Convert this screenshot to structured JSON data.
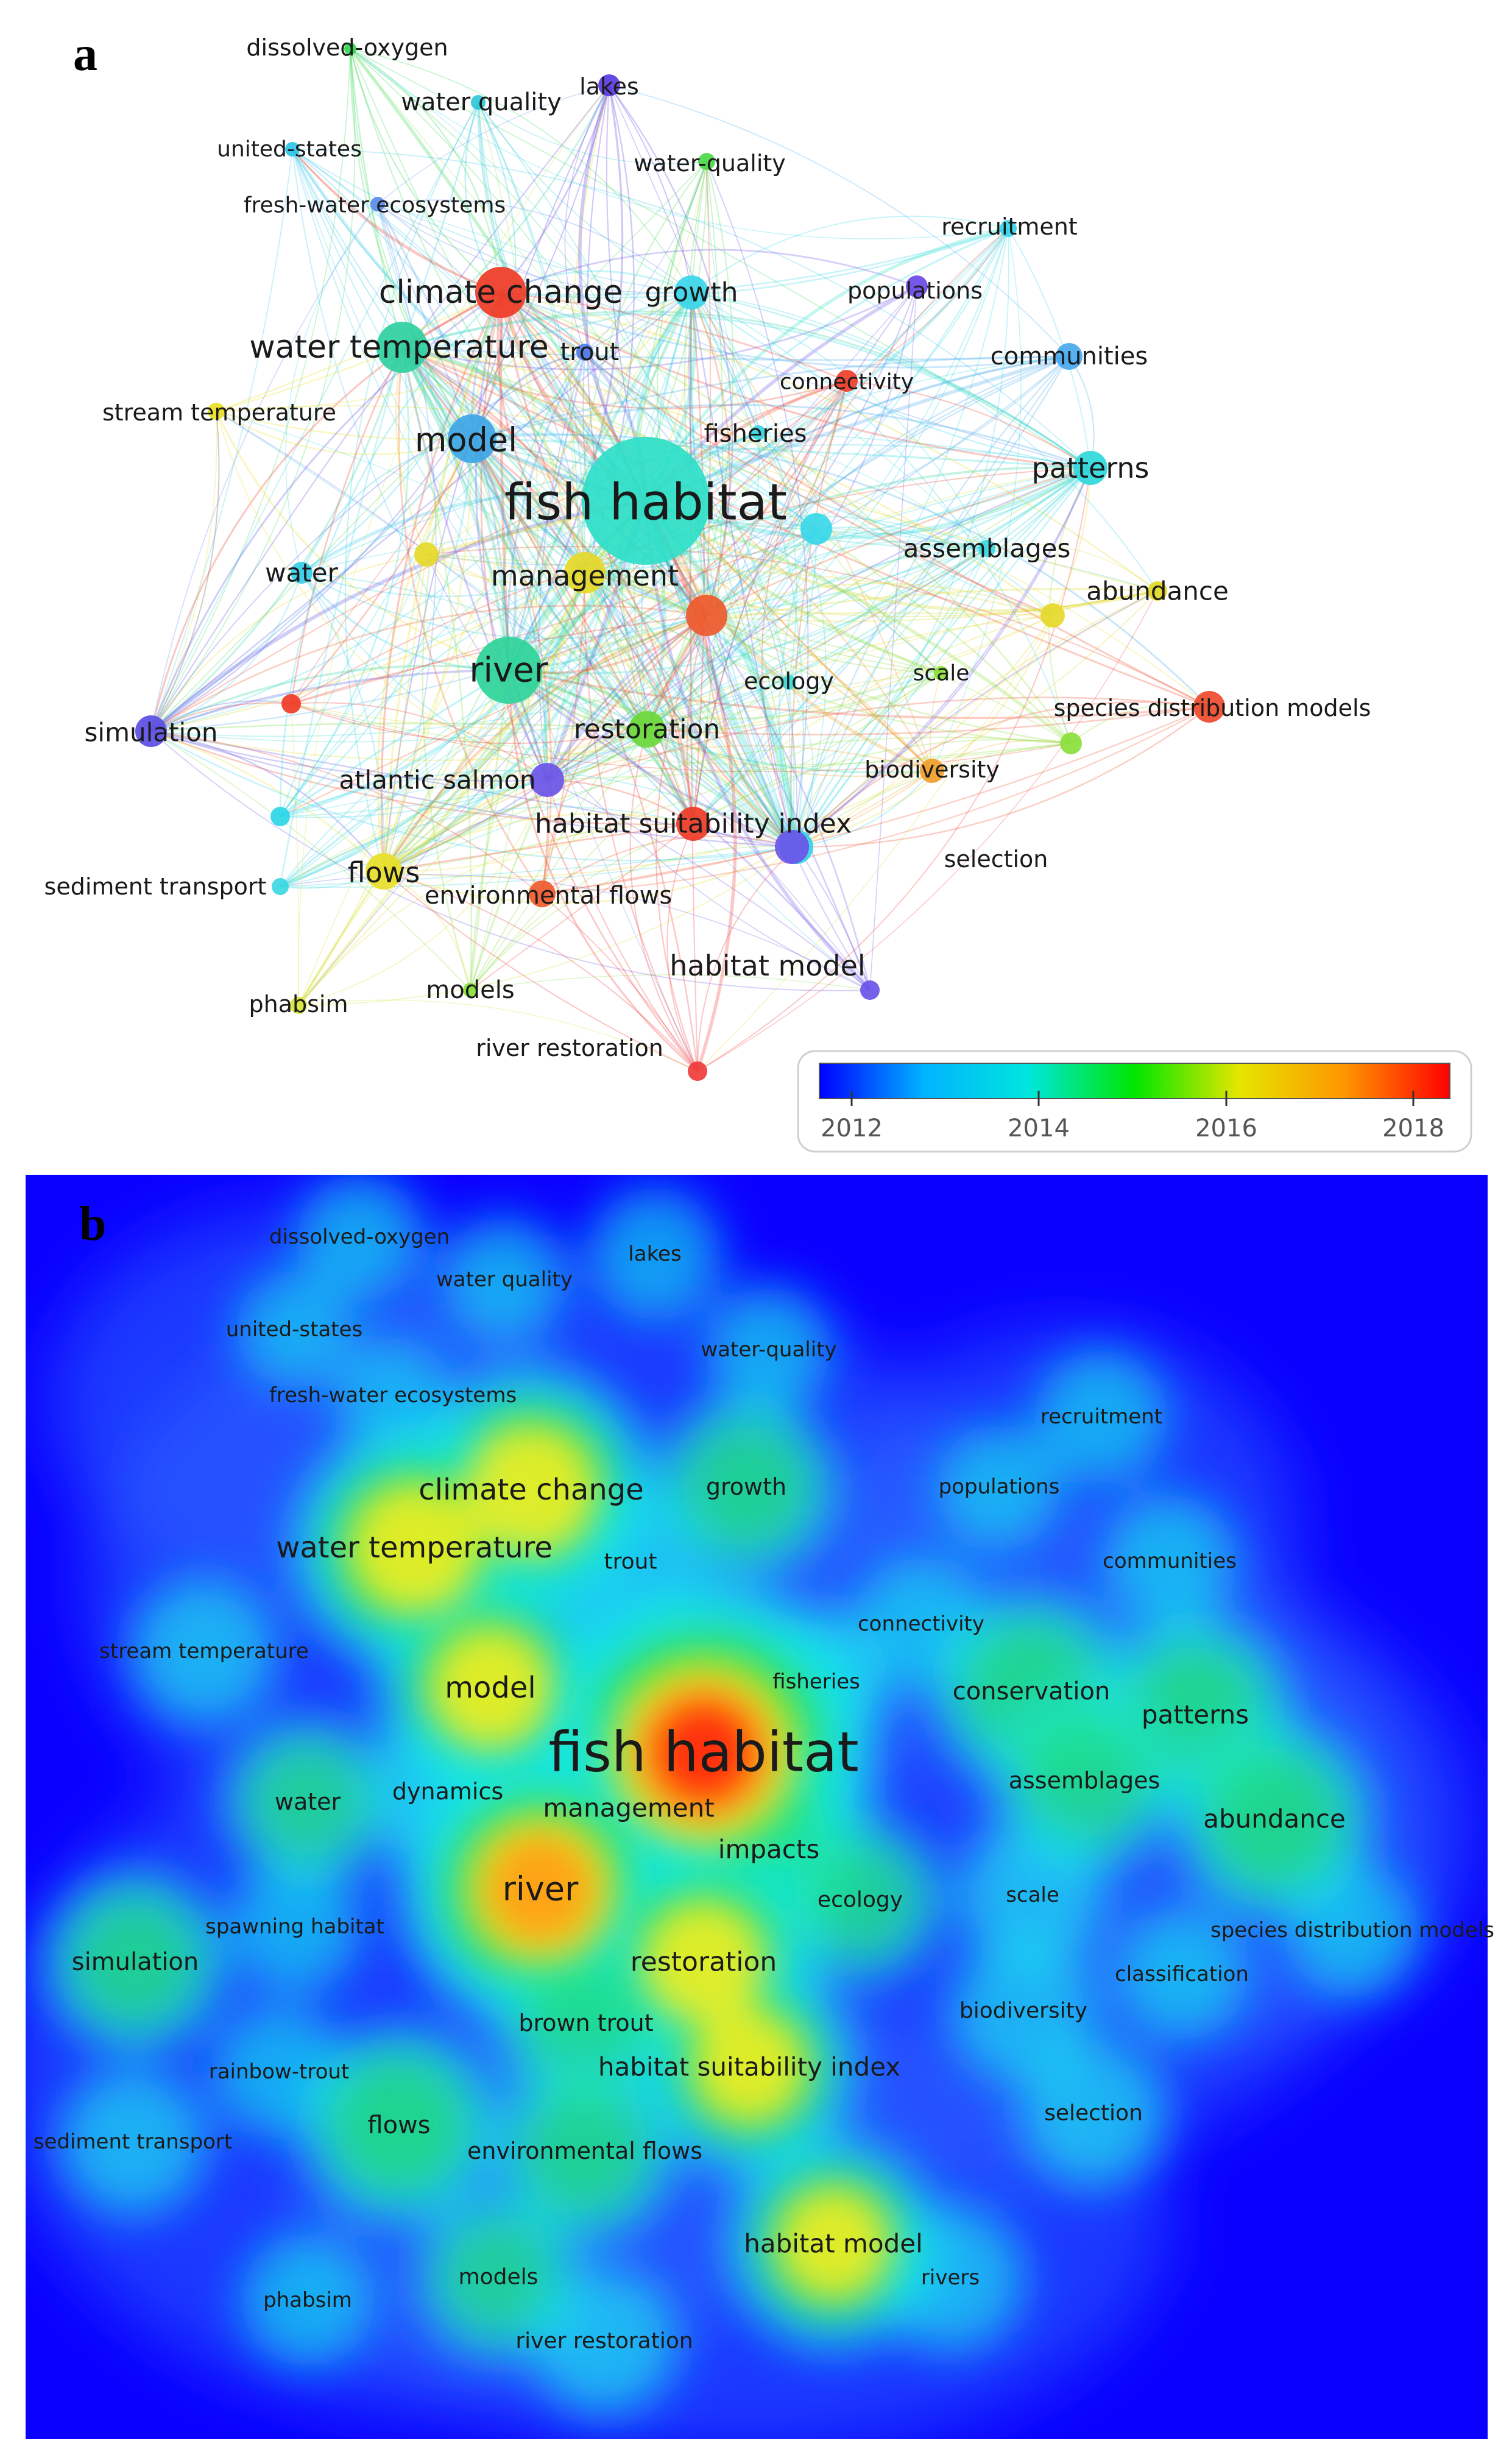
{
  "panel_a": {
    "letter": "a",
    "legend_ticks": [
      "2012",
      "2014",
      "2016",
      "2018"
    ],
    "legend_gradient": [
      "#0000ff",
      "#00b4ff",
      "#00e6dc",
      "#00e600",
      "#e6e600",
      "#ff9600",
      "#ff0000"
    ],
    "nodes": [
      {
        "label": "dissolved-oxygen",
        "color": "#2fd94e"
      },
      {
        "label": "lakes",
        "color": "#5a3be0"
      },
      {
        "label": "water quality",
        "color": "#2cc8d8"
      },
      {
        "label": "united-states",
        "color": "#31c4e9"
      },
      {
        "label": "water-quality",
        "color": "#4cd84a"
      },
      {
        "label": "fresh-water ecosystems",
        "color": "#5b8be8"
      },
      {
        "label": "recruitment",
        "color": "#33d6ea"
      },
      {
        "label": "climate change",
        "color": "#ef3b26"
      },
      {
        "label": "growth",
        "color": "#3ad6ea"
      },
      {
        "label": "populations",
        "color": "#6a4ae6"
      },
      {
        "label": "water temperature",
        "color": "#2fd0a0"
      },
      {
        "label": "trout",
        "color": "#4e7be6"
      },
      {
        "label": "communities",
        "color": "#48a8ee"
      },
      {
        "label": "connectivity",
        "color": "#ef3d2a"
      },
      {
        "label": "stream temperature",
        "color": "#e8df24"
      },
      {
        "label": "fisheries",
        "color": "#38d3de"
      },
      {
        "label": "model",
        "color": "#3ea6e6"
      },
      {
        "label": "patterns",
        "color": "#30d8dc"
      },
      {
        "label": "fish habitat",
        "color": "#2ee0c8"
      },
      {
        "label": "assemblages",
        "color": "#38d8dc"
      },
      {
        "label": "water",
        "color": "#36cce8"
      },
      {
        "label": "management",
        "color": "#e6d92a"
      },
      {
        "label": "abundance",
        "color": "#e2d828"
      },
      {
        "label": "river",
        "color": "#2ed49a"
      },
      {
        "label": "ecology",
        "color": "#3dd8d8"
      },
      {
        "label": "scale",
        "color": "#8be03a"
      },
      {
        "label": "simulation",
        "color": "#5b4ee4"
      },
      {
        "label": "species distribution models",
        "color": "#ef4a2d"
      },
      {
        "label": "restoration",
        "color": "#6bd83a"
      },
      {
        "label": "biodiversity",
        "color": "#f0a02a"
      },
      {
        "label": "atlantic salmon",
        "color": "#6a55e8"
      },
      {
        "label": "habitat suitability index",
        "color": "#ef3b26"
      },
      {
        "label": "selection",
        "color": "#34d2e8"
      },
      {
        "label": "sediment transport",
        "color": "#3bd8e2"
      },
      {
        "label": "flows",
        "color": "#e8e02a"
      },
      {
        "label": "environmental flows",
        "color": "#ef5a2c"
      },
      {
        "label": "habitat model",
        "color": "#6a55e8"
      },
      {
        "label": "phabsim",
        "color": "#d8e43a"
      },
      {
        "label": "models",
        "color": "#86e03c"
      },
      {
        "label": "river restoration",
        "color": "#ef3b3b"
      }
    ]
  },
  "panel_b": {
    "letter": "b",
    "labels": [
      "dissolved-oxygen",
      "water quality",
      "lakes",
      "united-states",
      "water-quality",
      "fresh-water ecosystems",
      "recruitment",
      "climate change",
      "growth",
      "populations",
      "water temperature",
      "trout",
      "communities",
      "connectivity",
      "stream temperature",
      "fisheries",
      "model",
      "conservation",
      "patterns",
      "fish habitat",
      "assemblages",
      "dynamics",
      "water",
      "management",
      "abundance",
      "impacts",
      "river",
      "ecology",
      "scale",
      "spawning habitat",
      "species distribution models",
      "simulation",
      "restoration",
      "classification",
      "biodiversity",
      "brown trout",
      "rainbow-trout",
      "habitat suitability index",
      "selection",
      "flows",
      "sediment transport",
      "environmental flows",
      "habitat model",
      "models",
      "rivers",
      "phabsim",
      "river restoration"
    ]
  }
}
